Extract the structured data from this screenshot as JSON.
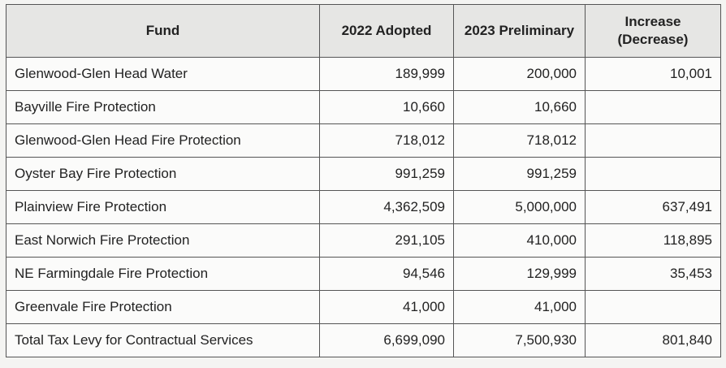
{
  "table": {
    "header": [
      "Fund",
      "2022 Adopted",
      "2023 Preliminary",
      "Increase (Decrease)"
    ],
    "rows": [
      [
        "Glenwood-Glen Head Water",
        "189,999",
        "200,000",
        "10,001"
      ],
      [
        "Bayville Fire Protection",
        "10,660",
        "10,660",
        null
      ],
      [
        "Glenwood-Glen Head Fire Protection",
        "718,012",
        "718,012",
        null
      ],
      [
        "Oyster Bay Fire Protection",
        "991,259",
        "991,259",
        null
      ],
      [
        "Plainview Fire Protection",
        "4,362,509",
        "5,000,000",
        "637,491"
      ],
      [
        "East Norwich Fire Protection",
        "291,105",
        "410,000",
        "118,895"
      ],
      [
        "NE Farmingdale Fire Protection",
        "94,546",
        "129,999",
        "35,453"
      ],
      [
        "Greenvale Fire Protection",
        "41,000",
        "41,000",
        null
      ],
      [
        "Total Tax Levy for Contractual Services",
        "6,699,090",
        "7,500,930",
        "801,840"
      ]
    ]
  }
}
